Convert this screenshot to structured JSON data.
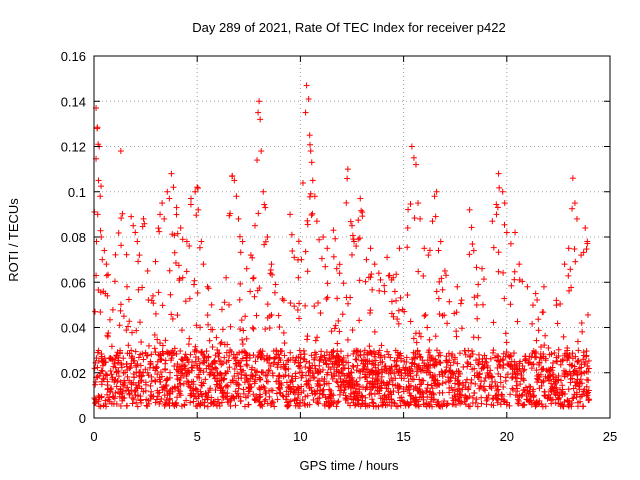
{
  "chart_data": {
    "type": "scatter",
    "title": "Day 289 of 2021, Rate Of TEC Index for receiver p422",
    "xlabel": "GPS time / hours",
    "ylabel": "ROTI / TECUs",
    "xlim": [
      0,
      25
    ],
    "ylim": [
      0,
      0.16
    ],
    "x_ticks": [
      0,
      5,
      10,
      15,
      20,
      25
    ],
    "x_tick_labels": [
      "0",
      "5",
      "10",
      "15",
      "20",
      "25"
    ],
    "y_ticks": [
      0,
      0.02,
      0.04,
      0.06,
      0.08,
      0.1,
      0.12,
      0.14,
      0.16
    ],
    "y_tick_labels": [
      "0",
      "0.02",
      "0.04",
      "0.06",
      "0.08",
      "0.1",
      "0.12",
      "0.14",
      "0.16"
    ],
    "grid": "dotted",
    "marker": "+",
    "marker_color": "#ff0000",
    "series": [
      {
        "points": [
          [
            0.1,
            0.137
          ],
          [
            0.15,
            0.128
          ],
          [
            0.2,
            0.121
          ],
          [
            0.25,
            0.12
          ],
          [
            0.22,
            0.105
          ],
          [
            0.3,
            0.098
          ],
          [
            0.18,
            0.09
          ],
          [
            0.12,
            0.078
          ],
          [
            0.35,
            0.08
          ],
          [
            0.4,
            0.07
          ],
          [
            0.45,
            0.056
          ],
          [
            0.55,
            0.055
          ],
          [
            0.65,
            0.054
          ],
          [
            0.05,
            0.047
          ],
          [
            0.1,
            0.063
          ],
          [
            0.6,
            0.068
          ],
          [
            0.5,
            0.074
          ],
          [
            1.3,
            0.118
          ],
          [
            1.45,
            0.045
          ],
          [
            1.6,
            0.058
          ],
          [
            1.8,
            0.089
          ],
          [
            1.9,
            0.085
          ],
          [
            2.0,
            0.082
          ],
          [
            2.1,
            0.078
          ],
          [
            2.2,
            0.072
          ],
          [
            2.4,
            0.088
          ],
          [
            2.6,
            0.065
          ],
          [
            2.8,
            0.052
          ],
          [
            3.0,
            0.046
          ],
          [
            3.2,
            0.09
          ],
          [
            3.3,
            0.095
          ],
          [
            3.4,
            0.088
          ],
          [
            3.55,
            0.1
          ],
          [
            3.65,
            0.097
          ],
          [
            3.75,
            0.108
          ],
          [
            3.85,
            0.102
          ],
          [
            4.0,
            0.093
          ],
          [
            4.2,
            0.084
          ],
          [
            4.3,
            0.062
          ],
          [
            4.5,
            0.078
          ],
          [
            4.7,
            0.097
          ],
          [
            4.9,
            0.1
          ],
          [
            5.0,
            0.102
          ],
          [
            5.05,
            0.092
          ],
          [
            5.2,
            0.078
          ],
          [
            5.3,
            0.068
          ],
          [
            5.5,
            0.058
          ],
          [
            5.7,
            0.05
          ],
          [
            6.2,
            0.048
          ],
          [
            6.4,
            0.062
          ],
          [
            6.7,
            0.107
          ],
          [
            6.8,
            0.105
          ],
          [
            6.9,
            0.098
          ],
          [
            7.0,
            0.088
          ],
          [
            7.2,
            0.078
          ],
          [
            7.4,
            0.066
          ],
          [
            7.6,
            0.072
          ],
          [
            7.8,
            0.085
          ],
          [
            7.9,
            0.114
          ],
          [
            7.95,
            0.135
          ],
          [
            8.0,
            0.14
          ],
          [
            8.05,
            0.132
          ],
          [
            8.1,
            0.118
          ],
          [
            8.2,
            0.1
          ],
          [
            8.3,
            0.093
          ],
          [
            8.4,
            0.08
          ],
          [
            8.6,
            0.068
          ],
          [
            8.8,
            0.059
          ],
          [
            9.2,
            0.052
          ],
          [
            9.5,
            0.09
          ],
          [
            9.7,
            0.071
          ],
          [
            9.9,
            0.062
          ],
          [
            10.05,
            0.07
          ],
          [
            10.25,
            0.135
          ],
          [
            10.3,
            0.147
          ],
          [
            10.4,
            0.141
          ],
          [
            10.45,
            0.125
          ],
          [
            10.5,
            0.118
          ],
          [
            10.55,
            0.113
          ],
          [
            10.6,
            0.105
          ],
          [
            10.7,
            0.098
          ],
          [
            10.8,
            0.087
          ],
          [
            11.1,
            0.08
          ],
          [
            11.3,
            0.075
          ],
          [
            11.6,
            0.083
          ],
          [
            11.9,
            0.064
          ],
          [
            12.3,
            0.11
          ],
          [
            12.5,
            0.085
          ],
          [
            12.6,
            0.078
          ],
          [
            12.7,
            0.076
          ],
          [
            12.9,
            0.097
          ],
          [
            13.0,
            0.091
          ],
          [
            13.2,
            0.07
          ],
          [
            13.4,
            0.075
          ],
          [
            13.6,
            0.068
          ],
          [
            13.8,
            0.064
          ],
          [
            14.2,
            0.071
          ],
          [
            14.5,
            0.062
          ],
          [
            14.8,
            0.075
          ],
          [
            15.2,
            0.084
          ],
          [
            15.4,
            0.12
          ],
          [
            15.5,
            0.115
          ],
          [
            15.6,
            0.112
          ],
          [
            15.7,
            0.095
          ],
          [
            15.8,
            0.088
          ],
          [
            16.0,
            0.075
          ],
          [
            16.2,
            0.072
          ],
          [
            16.4,
            0.087
          ],
          [
            16.5,
            0.098
          ],
          [
            16.6,
            0.1
          ],
          [
            16.8,
            0.078
          ],
          [
            17.0,
            0.065
          ],
          [
            17.6,
            0.058
          ],
          [
            18.2,
            0.092
          ],
          [
            18.4,
            0.074
          ],
          [
            18.8,
            0.066
          ],
          [
            19.3,
            0.087
          ],
          [
            19.5,
            0.09
          ],
          [
            19.6,
            0.108
          ],
          [
            19.8,
            0.1
          ],
          [
            19.9,
            0.095
          ],
          [
            20.0,
            0.082
          ],
          [
            20.2,
            0.077
          ],
          [
            20.4,
            0.082
          ],
          [
            20.6,
            0.068
          ],
          [
            21.0,
            0.058
          ],
          [
            21.4,
            0.055
          ],
          [
            21.8,
            0.058
          ],
          [
            22.4,
            0.052
          ],
          [
            22.8,
            0.068
          ],
          [
            23.0,
            0.075
          ],
          [
            23.2,
            0.106
          ],
          [
            23.3,
            0.095
          ],
          [
            23.4,
            0.088
          ],
          [
            23.6,
            0.072
          ],
          [
            23.8,
            0.084
          ],
          [
            23.9,
            0.078
          ]
        ]
      }
    ]
  }
}
